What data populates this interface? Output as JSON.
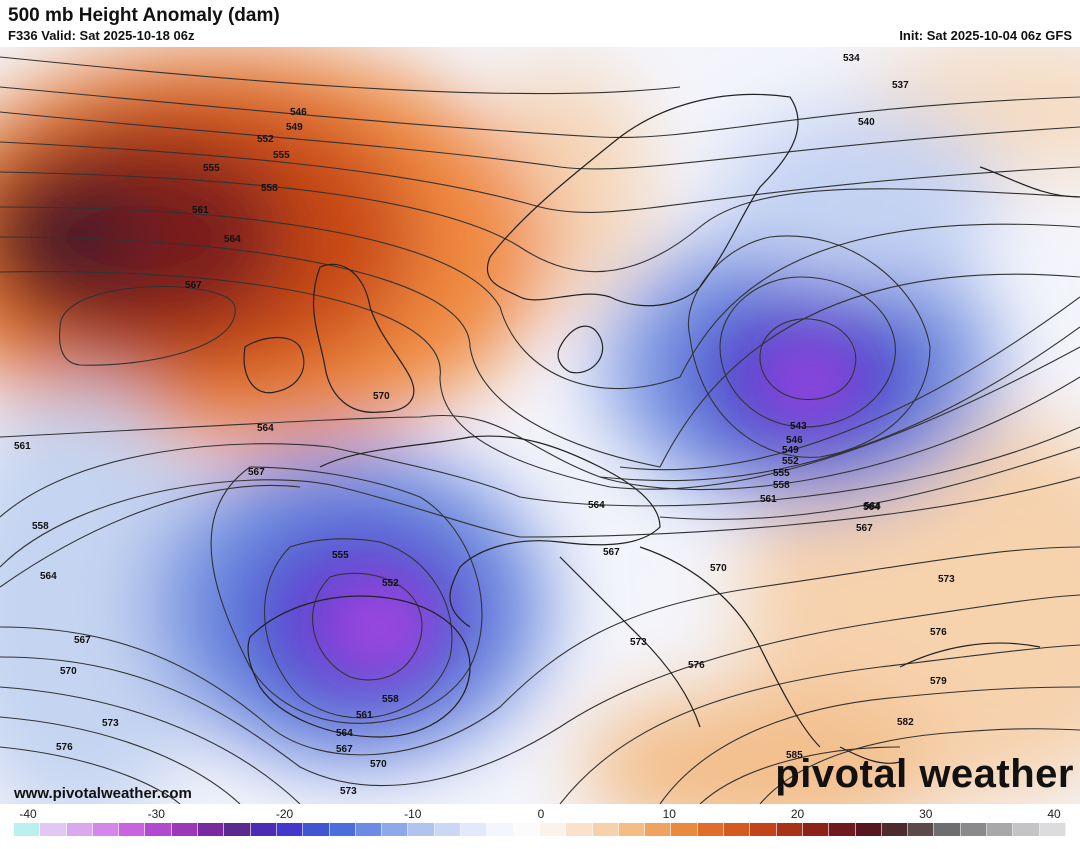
{
  "header": {
    "title": "500 mb Height Anomaly (dam)",
    "valid": "F336 Valid: Sat 2025-10-18 06z",
    "init": "Init: Sat 2025-10-04 06z GFS"
  },
  "footer": {
    "website": "www.pivotalweather.com",
    "brand": "pivotal weather"
  },
  "legend": {
    "ticks": [
      "-40",
      "-30",
      "-20",
      "-10",
      "0",
      "10",
      "20",
      "30",
      "40"
    ],
    "min": -40,
    "max": 40,
    "colors": [
      "#b9f0f0",
      "#e0c8f2",
      "#d9a8ef",
      "#d486ea",
      "#c864e0",
      "#b04ad0",
      "#9a38b8",
      "#7a2aa0",
      "#5b2a8e",
      "#4b2db5",
      "#4438cc",
      "#3f55d3",
      "#4a6fdc",
      "#6a8de3",
      "#8ea9ea",
      "#b0c4f0",
      "#cbd8f5",
      "#e2e9fa",
      "#f3f6fd",
      "#fbfbfb",
      "#fbf3ea",
      "#f9e2cb",
      "#f7d1a9",
      "#f4bd85",
      "#f0a35f",
      "#ea8a3f",
      "#e06e2a",
      "#d55a1f",
      "#c2451a",
      "#a83318",
      "#8c2218",
      "#6e1a1e",
      "#58161f",
      "#4c2a2e",
      "#5a4a4c",
      "#6e6e70",
      "#8a8a8c",
      "#a8a8aa",
      "#c4c4c6",
      "#dcdcde"
    ]
  },
  "map": {
    "labels": [
      {
        "text": "534"
      },
      {
        "text": "537"
      },
      {
        "text": "540"
      },
      {
        "text": "546"
      },
      {
        "text": "549"
      },
      {
        "text": "552"
      },
      {
        "text": "555"
      },
      {
        "text": "555"
      },
      {
        "text": "558"
      },
      {
        "text": "561"
      },
      {
        "text": "564"
      },
      {
        "text": "567"
      },
      {
        "text": "570"
      },
      {
        "text": "564"
      },
      {
        "text": "561"
      },
      {
        "text": "567"
      },
      {
        "text": "558"
      },
      {
        "text": "564"
      },
      {
        "text": "564"
      },
      {
        "text": "567"
      },
      {
        "text": "570"
      },
      {
        "text": "573"
      },
      {
        "text": "576"
      },
      {
        "text": "555"
      },
      {
        "text": "552"
      },
      {
        "text": "558"
      },
      {
        "text": "561"
      },
      {
        "text": "564"
      },
      {
        "text": "567"
      },
      {
        "text": "570"
      },
      {
        "text": "573"
      },
      {
        "text": "543"
      },
      {
        "text": "546"
      },
      {
        "text": "549"
      },
      {
        "text": "552"
      },
      {
        "text": "555"
      },
      {
        "text": "558"
      },
      {
        "text": "561"
      },
      {
        "text": "564"
      },
      {
        "text": "564"
      },
      {
        "text": "567"
      },
      {
        "text": "567"
      },
      {
        "text": "570"
      },
      {
        "text": "573"
      },
      {
        "text": "573"
      },
      {
        "text": "576"
      },
      {
        "text": "576"
      },
      {
        "text": "579"
      },
      {
        "text": "582"
      },
      {
        "text": "585"
      }
    ]
  }
}
